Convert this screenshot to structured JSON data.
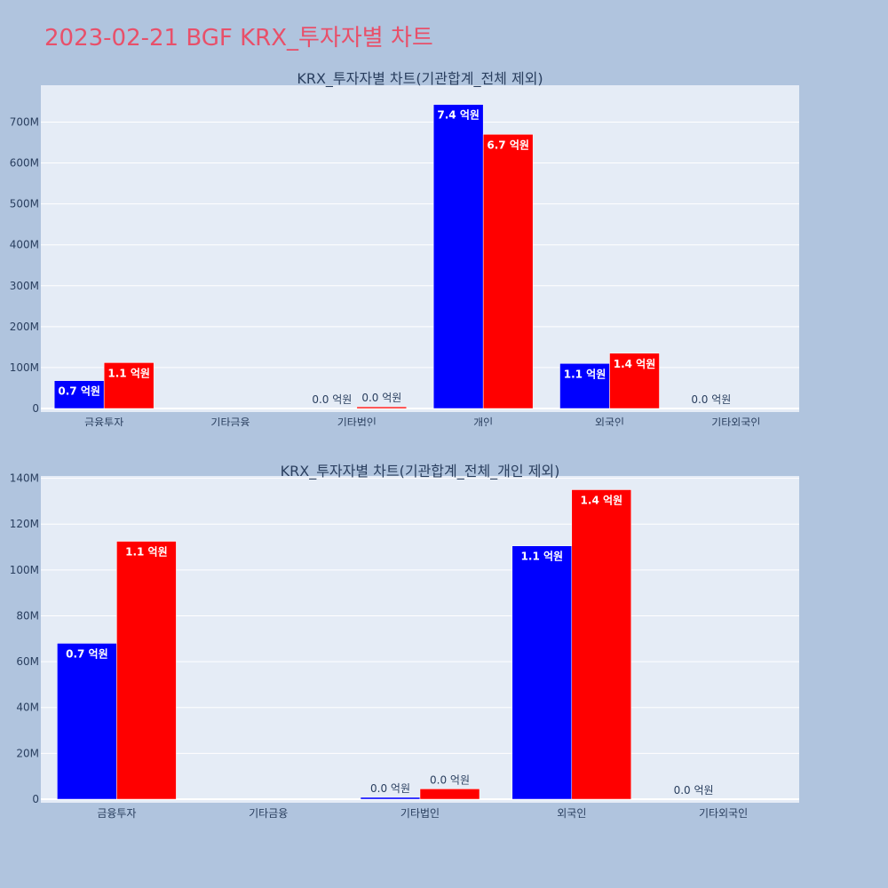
{
  "page": {
    "title": "2023-02-21 BGF KRX_투자자별 차트",
    "background": "#b0c4de",
    "title_color": "#e8506a"
  },
  "colors": {
    "series_a": "#0000ff",
    "series_b": "#ff0000",
    "plot_bg": "#e5ecf6",
    "grid": "#ffffff",
    "text": "#2a3f5f"
  },
  "chart_data": [
    {
      "type": "bar",
      "title": "KRX_투자자별 차트(기관합계_전체 제외)",
      "categories": [
        "금융투자",
        "기타금융",
        "기타법인",
        "개인",
        "외국인",
        "기타외국인"
      ],
      "series": [
        {
          "color": "#0000ff",
          "values": [
            68000000,
            0,
            0,
            743000000,
            110000000,
            0
          ],
          "labels": [
            "0.7 억원",
            "",
            "0.0 억원",
            "7.4 억원",
            "1.1 억원",
            "0.0 억원"
          ]
        },
        {
          "color": "#ff0000",
          "values": [
            112000000,
            0,
            4000000,
            670000000,
            135000000,
            0
          ],
          "labels": [
            "1.1 억원",
            "",
            "0.0 억원",
            "6.7 억원",
            "1.4 억원",
            ""
          ]
        }
      ],
      "ylim": [
        0,
        790000000
      ],
      "yticks": [
        0,
        100000000,
        200000000,
        300000000,
        400000000,
        500000000,
        600000000,
        700000000
      ],
      "ytick_labels": [
        "0",
        "100M",
        "200M",
        "300M",
        "400M",
        "500M",
        "600M",
        "700M"
      ],
      "grid": true,
      "legend": "none"
    },
    {
      "type": "bar",
      "title": "KRX_투자자별 차트(기관합계_전체_개인 제외)",
      "categories": [
        "금융투자",
        "기타금융",
        "기타법인",
        "외국인",
        "기타외국인"
      ],
      "series": [
        {
          "color": "#0000ff",
          "values": [
            68000000,
            0,
            800000,
            110500000,
            0
          ],
          "labels": [
            "0.7 억원",
            "",
            "0.0 억원",
            "1.1 억원",
            "0.0 억원"
          ]
        },
        {
          "color": "#ff0000",
          "values": [
            112500000,
            0,
            4500000,
            135000000,
            0
          ],
          "labels": [
            "1.1 억원",
            "",
            "0.0 억원",
            "1.4 억원",
            ""
          ]
        }
      ],
      "ylim": [
        0,
        141000000
      ],
      "yticks": [
        0,
        20000000,
        40000000,
        60000000,
        80000000,
        100000000,
        120000000,
        140000000
      ],
      "ytick_labels": [
        "0",
        "20M",
        "40M",
        "60M",
        "80M",
        "100M",
        "120M",
        "140M"
      ],
      "grid": true,
      "legend": "none"
    }
  ]
}
